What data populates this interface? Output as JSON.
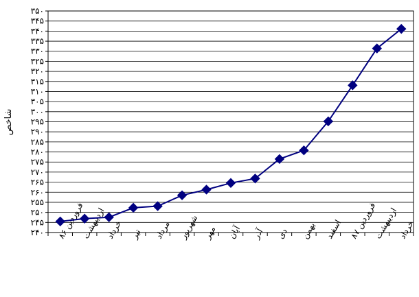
{
  "chart_data": {
    "type": "line",
    "ylabel": "شاخص",
    "categories": [
      "فروردین ۸۶",
      "اردیبهشت",
      "خرداد",
      "تیر",
      "مرداد",
      "شهریور",
      "مهر",
      "آبان",
      "آذر",
      "دی",
      "بهمن",
      "اسفند",
      "فروردین ۸۷",
      "اردیبهشت",
      "خرداد"
    ],
    "values": [
      245.5,
      246.9,
      247.6,
      252.3,
      253.1,
      258.5,
      261.3,
      264.6,
      266.8,
      276.5,
      280.8,
      295.2,
      313.1,
      331.4,
      341.1
    ],
    "ylim": [
      240,
      350
    ],
    "ytick_step": 5,
    "ytick_labels": [
      "۲۴۰",
      "۲۴۵",
      "۲۵۰",
      "۲۵۵",
      "۲۶۰",
      "۲۶۵",
      "۲۷۰",
      "۲۷۵",
      "۲۸۰",
      "۲۸۵",
      "۲۹۰",
      "۲۹۵",
      "۳۰۰",
      "۳۰۵",
      "۳۱۰",
      "۳۱۵",
      "۳۲۰",
      "۳۲۵",
      "۳۳۰",
      "۳۳۵",
      "۳۴۰",
      "۳۴۵",
      "۳۵۰"
    ],
    "grid": true,
    "legend": "none",
    "line_color": "#000080",
    "marker": "diamond"
  }
}
